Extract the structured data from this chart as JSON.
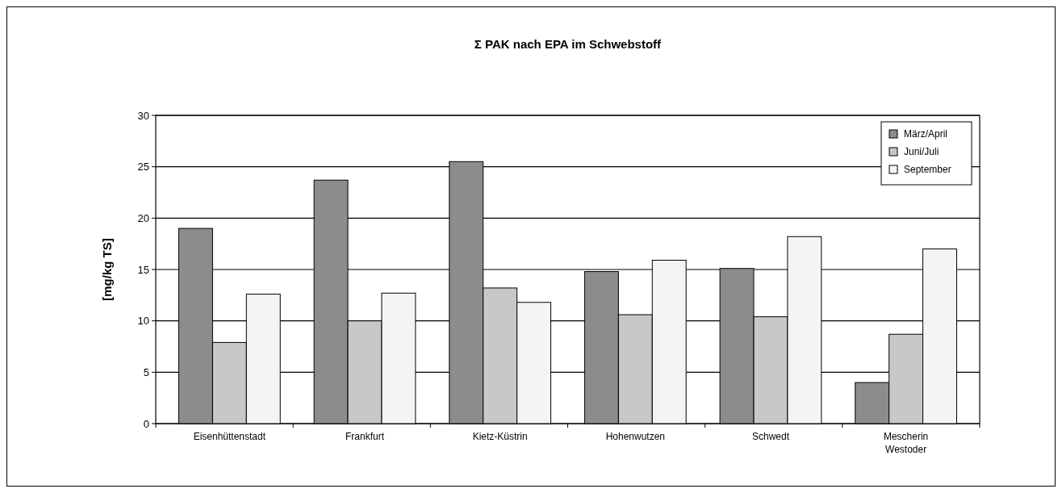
{
  "chart_data": {
    "type": "bar",
    "title": "Σ PAK nach EPA im Schwebstoff",
    "ylabel": "[mg/kg TS]",
    "categories": [
      "Eisenhüttenstadt",
      "Frankfurt",
      "Kietz-Küstrin",
      "Hohenwutzen",
      "Schwedt",
      "Mescherin Westoder"
    ],
    "series": [
      {
        "name": "März/April",
        "color": "#8c8c8c",
        "values": [
          19,
          23.7,
          25.5,
          14.8,
          15.1,
          4
        ]
      },
      {
        "name": "Juni/Juli",
        "color": "#c8c8c8",
        "values": [
          7.9,
          10,
          13.2,
          10.6,
          10.4,
          8.7
        ]
      },
      {
        "name": "September",
        "color": "#f4f4f4",
        "values": [
          12.6,
          12.7,
          11.8,
          15.9,
          18.2,
          17
        ]
      }
    ],
    "ylim": [
      0,
      30
    ],
    "yticks": [
      0,
      5,
      10,
      15,
      20,
      25,
      30
    ],
    "grid": "y",
    "legend": "top right"
  }
}
